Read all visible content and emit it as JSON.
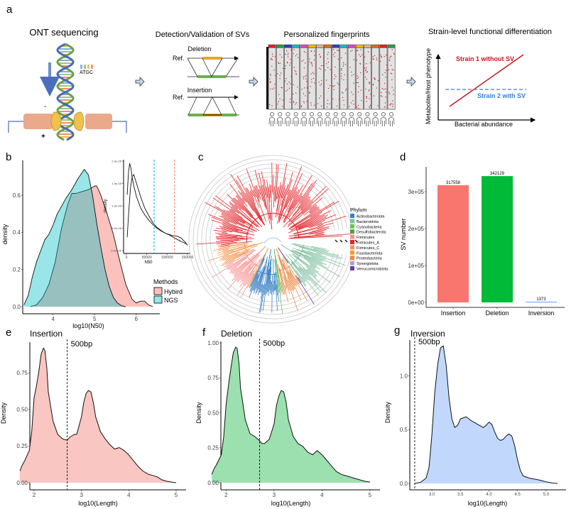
{
  "panel_labels": {
    "a": "a",
    "b": "b",
    "c": "c",
    "d": "d",
    "e": "e",
    "f": "f",
    "g": "g"
  },
  "panel_a": {
    "ont_title": "ONT sequencing",
    "bases_label": "ATGC",
    "minus_sign": "-",
    "plus_sign": "+",
    "detection_title": "Detection/Validation of SVs",
    "ref_label": "Ref.",
    "deletion_label": "Deletion",
    "insertion_label": "Insertion",
    "fingerprints_title": "Personalized fingerprints",
    "fingerprint_columns": 16,
    "fingerprint_header_colors": [
      "#e8202a",
      "#2ea043",
      "#2b3fc9",
      "#19c4c0",
      "#e44bc8",
      "#f2c012",
      "#e0b890",
      "#e07020",
      "#2b3fc9",
      "#19c4c0",
      "#e44bc8",
      "#f2c012",
      "#e0b890",
      "#e07020",
      "#e8202a",
      "#2ea043"
    ],
    "strain_title": "Strain-level functional differentiation",
    "strain_y_label": "Metabolite/Host phenotype",
    "strain_x_label": "Bacterial abundance",
    "strain1_label": "Strain 1 without SV",
    "strain2_label": "Strain 2 with SV",
    "strain1_color": "#c8191e",
    "strain2_color": "#3a7fd0"
  },
  "panel_c": {
    "legend_title": "Phylum",
    "legend": [
      {
        "name": "Actinobacteriota",
        "color": "#3b82c4"
      },
      {
        "name": "Bacteroidota",
        "color": "#7fbf9e"
      },
      {
        "name": "Cyanobacteria",
        "color": "#6abf5a"
      },
      {
        "name": "Desulfobacterota",
        "color": "#5a9a3c"
      },
      {
        "name": "Firmicutes",
        "color": "#f4908f"
      },
      {
        "name": "Firmicutes_A",
        "color": "#e3262b"
      },
      {
        "name": "Firmicutes_C",
        "color": "#f39060"
      },
      {
        "name": "Fusobacteriota",
        "color": "#f89a2a"
      },
      {
        "name": "Proteobacteria",
        "color": "#e88c4a"
      },
      {
        "name": "Synergistota",
        "color": "#b99ad0"
      },
      {
        "name": "Verrucomicrobiota",
        "color": "#6a3d9a"
      }
    ]
  },
  "chart_data": [
    {
      "id": "b",
      "type": "area",
      "title": "",
      "xlabel": "log10(N50)",
      "ylabel": "density",
      "xlim": [
        3.2,
        6.5
      ],
      "ylim": [
        0,
        0.78
      ],
      "xticks": [
        4,
        5,
        6
      ],
      "yticks": [
        0.0,
        0.2,
        0.4,
        0.6
      ],
      "ytick_labels": [
        "0.0",
        "0.2",
        "0.4",
        "0.6"
      ],
      "legend_title": "Methods",
      "legend_position": "right",
      "series": [
        {
          "name": "Hybird",
          "color": "#f8766d",
          "fill": "rgba(248,118,109,0.45)",
          "x": [
            3.45,
            3.6,
            3.75,
            3.9,
            4.05,
            4.2,
            4.35,
            4.45,
            4.55,
            4.7,
            4.85,
            5.0,
            5.05,
            5.15,
            5.3,
            5.45,
            5.6,
            5.75,
            5.9,
            6.0,
            6.1,
            6.2,
            6.3,
            6.4
          ],
          "y": [
            0.0,
            0.01,
            0.05,
            0.12,
            0.24,
            0.42,
            0.55,
            0.61,
            0.61,
            0.62,
            0.63,
            0.65,
            0.65,
            0.6,
            0.5,
            0.39,
            0.25,
            0.12,
            0.04,
            0.02,
            0.03,
            0.03,
            0.01,
            0.0
          ]
        },
        {
          "name": "NGS",
          "color": "#00bfc4",
          "fill": "rgba(0,191,196,0.4)",
          "x": [
            3.3,
            3.4,
            3.5,
            3.6,
            3.7,
            3.8,
            3.9,
            4.0,
            4.1,
            4.2,
            4.3,
            4.45,
            4.6,
            4.75,
            4.85,
            4.95,
            5.05,
            5.15,
            5.25,
            5.35,
            5.45,
            5.55,
            5.65,
            5.75
          ],
          "y": [
            0.01,
            0.06,
            0.16,
            0.24,
            0.3,
            0.36,
            0.39,
            0.44,
            0.5,
            0.54,
            0.58,
            0.63,
            0.69,
            0.74,
            0.71,
            0.6,
            0.45,
            0.32,
            0.2,
            0.11,
            0.05,
            0.02,
            0.005,
            0.0
          ]
        }
      ]
    },
    {
      "id": "b-inset",
      "type": "area",
      "xlabel": "N50",
      "ylabel": "density",
      "xlim": [
        0,
        150000
      ],
      "ylim": [
        0,
        2e-05
      ],
      "xticks": [
        0,
        50000,
        100000,
        150000
      ],
      "xtick_labels": [
        "0",
        "50000",
        "100000",
        "150000"
      ],
      "yticks": [
        0,
        5e-06,
        1e-05,
        1.5e-05,
        2e-05
      ],
      "ytick_labels": [
        "0.0e+00",
        "5.0e-06",
        "1.0e-05",
        "1.5e-05",
        "2.0e-05"
      ],
      "vlines": [
        {
          "x": 68000,
          "color": "#00bfc4"
        },
        {
          "x": 118000,
          "color": "#f8766d"
        }
      ],
      "series": [
        {
          "name": "Hybird",
          "color": "#f8766d",
          "x": [
            2000,
            6000,
            10000,
            14000,
            18000,
            25000,
            35000,
            45000,
            55000,
            65000,
            75000,
            85000,
            95000,
            105000,
            115000,
            125000,
            135000,
            145000,
            150000
          ],
          "y": [
            3e-06,
            9e-06,
            1.4e-05,
            1.65e-05,
            1.7e-05,
            1.5e-05,
            1.2e-05,
            9.5e-06,
            7.8e-06,
            6.2e-06,
            5.2e-06,
            4.5e-06,
            3.9e-06,
            3.6e-06,
            3.3e-06,
            3.2e-06,
            2.8e-06,
            1.8e-06,
            1.2e-06
          ]
        },
        {
          "name": "NGS",
          "color": "#00bfc4",
          "x": [
            2000,
            5000,
            8000,
            11000,
            14000,
            18000,
            25000,
            35000,
            45000,
            55000,
            65000,
            75000,
            85000,
            95000,
            105000,
            115000,
            125000,
            135000,
            145000,
            150000
          ],
          "y": [
            1.25e-05,
            1.75e-05,
            1.95e-05,
            1.85e-05,
            1.65e-05,
            1.45e-05,
            1.2e-05,
            9.5e-06,
            8e-06,
            6.8e-06,
            5.8e-06,
            5e-06,
            4.4e-06,
            3.9e-06,
            3.5e-06,
            3e-06,
            2.5e-06,
            2e-06,
            1.6e-06,
            1.3e-06
          ]
        }
      ]
    },
    {
      "id": "d",
      "type": "bar",
      "xlabel": "",
      "ylabel": "SV number",
      "categories": [
        "Insertion",
        "Deletion",
        "Inversion"
      ],
      "values": [
        317558,
        342129,
        1373
      ],
      "data_labels": [
        "317558",
        "342129",
        "1373"
      ],
      "colors": [
        "#f8766d",
        "#00ba38",
        "#619cff"
      ],
      "ylim": [
        0,
        350000
      ],
      "yticks": [
        0,
        100000,
        200000,
        300000
      ],
      "ytick_labels": [
        "0e+00",
        "1e+05",
        "2e+05",
        "3e+05"
      ]
    },
    {
      "id": "e",
      "type": "area",
      "title": "Insertion",
      "xlabel": "log10(Length)",
      "ylabel": "Density",
      "xlim": [
        1.55,
        5.15
      ],
      "ylim": [
        0,
        0.95
      ],
      "xticks": [
        2,
        3,
        4,
        5
      ],
      "yticks": [
        0,
        0.25,
        0.5,
        0.75
      ],
      "ytick_labels": [
        "0.00",
        "0.25",
        "0.50",
        "0.75"
      ],
      "color": "#f8766d",
      "fill": "#f9c6c1",
      "vline": {
        "x": 2.699,
        "label": "500bp"
      },
      "x": [
        1.7,
        1.75,
        1.8,
        1.9,
        1.95,
        2.0,
        2.05,
        2.1,
        2.15,
        2.2,
        2.23,
        2.27,
        2.3,
        2.4,
        2.5,
        2.6,
        2.7,
        2.75,
        2.8,
        2.85,
        2.9,
        3.0,
        3.05,
        3.1,
        3.15,
        3.2,
        3.25,
        3.3,
        3.4,
        3.5,
        3.6,
        3.7,
        3.8,
        3.9,
        4.0,
        4.1,
        4.2,
        4.3,
        4.4,
        4.5,
        4.6,
        4.7,
        4.8,
        4.9,
        5.0
      ],
      "y": [
        0.08,
        0.12,
        0.15,
        0.22,
        0.35,
        0.58,
        0.66,
        0.76,
        0.88,
        0.92,
        0.9,
        0.78,
        0.62,
        0.42,
        0.33,
        0.3,
        0.29,
        0.31,
        0.32,
        0.33,
        0.33,
        0.45,
        0.55,
        0.61,
        0.63,
        0.62,
        0.55,
        0.45,
        0.35,
        0.3,
        0.26,
        0.23,
        0.24,
        0.22,
        0.19,
        0.15,
        0.11,
        0.08,
        0.06,
        0.05,
        0.04,
        0.02,
        0.01,
        0.005,
        0.0
      ]
    },
    {
      "id": "f",
      "type": "area",
      "title": "Deletion",
      "xlabel": "log10(Length)",
      "ylabel": "Density",
      "xlim": [
        1.55,
        5.15
      ],
      "ylim": [
        0,
        1.0
      ],
      "xticks": [
        2,
        3,
        4,
        5
      ],
      "yticks": [
        0,
        0.25,
        0.5,
        0.75,
        1.0
      ],
      "ytick_labels": [
        "0.00",
        "0.25",
        "0.50",
        "0.75",
        "1.00"
      ],
      "color": "#00ba38",
      "fill": "#9be0ae",
      "vline": {
        "x": 2.699,
        "label": "500bp"
      },
      "x": [
        1.7,
        1.75,
        1.8,
        1.9,
        1.95,
        2.0,
        2.05,
        2.1,
        2.15,
        2.2,
        2.23,
        2.27,
        2.3,
        2.4,
        2.5,
        2.6,
        2.7,
        2.75,
        2.8,
        2.9,
        3.0,
        3.05,
        3.1,
        3.15,
        3.2,
        3.25,
        3.3,
        3.4,
        3.5,
        3.6,
        3.7,
        3.8,
        3.9,
        4.0,
        4.1,
        4.2,
        4.3,
        4.4,
        4.5,
        4.6,
        4.7,
        4.8,
        4.9,
        5.0
      ],
      "y": [
        0.06,
        0.1,
        0.13,
        0.2,
        0.33,
        0.56,
        0.7,
        0.82,
        0.93,
        0.97,
        0.96,
        0.85,
        0.68,
        0.45,
        0.35,
        0.33,
        0.3,
        0.28,
        0.28,
        0.31,
        0.42,
        0.55,
        0.62,
        0.66,
        0.65,
        0.58,
        0.45,
        0.33,
        0.28,
        0.26,
        0.22,
        0.2,
        0.23,
        0.2,
        0.16,
        0.12,
        0.08,
        0.06,
        0.05,
        0.04,
        0.03,
        0.02,
        0.01,
        0.005
      ]
    },
    {
      "id": "g",
      "type": "area",
      "title": "Inversion",
      "xlabel": "log10(Length)",
      "ylabel": "Density",
      "xlim": [
        2.65,
        5.3
      ],
      "ylim": [
        0,
        1.32
      ],
      "xticks": [
        3.0,
        3.5,
        4.0,
        4.5,
        5.0
      ],
      "xtick_labels": [
        "3.0",
        "3.5",
        "4.0",
        "4.5",
        "5.0"
      ],
      "yticks": [
        0,
        0.5,
        1.0
      ],
      "ytick_labels": [
        "0.0",
        "0.5",
        "1.0"
      ],
      "color": "#619cff",
      "fill": "#c1d8fc",
      "vline": {
        "x": 2.699,
        "label": "500bp"
      },
      "x": [
        2.7,
        2.8,
        2.9,
        2.95,
        3.0,
        3.05,
        3.1,
        3.15,
        3.2,
        3.25,
        3.3,
        3.35,
        3.4,
        3.45,
        3.5,
        3.6,
        3.7,
        3.8,
        3.9,
        3.95,
        4.0,
        4.05,
        4.1,
        4.15,
        4.2,
        4.25,
        4.3,
        4.35,
        4.4,
        4.45,
        4.5,
        4.55,
        4.6,
        4.7,
        4.8,
        4.9,
        5.0,
        5.1,
        5.2
      ],
      "y": [
        0.0,
        0.01,
        0.05,
        0.15,
        0.45,
        0.85,
        1.1,
        1.26,
        1.28,
        1.1,
        0.8,
        0.6,
        0.52,
        0.54,
        0.6,
        0.62,
        0.58,
        0.55,
        0.52,
        0.54,
        0.57,
        0.55,
        0.48,
        0.42,
        0.4,
        0.41,
        0.44,
        0.46,
        0.44,
        0.35,
        0.22,
        0.12,
        0.07,
        0.05,
        0.04,
        0.03,
        0.015,
        0.005,
        0.0
      ]
    }
  ]
}
